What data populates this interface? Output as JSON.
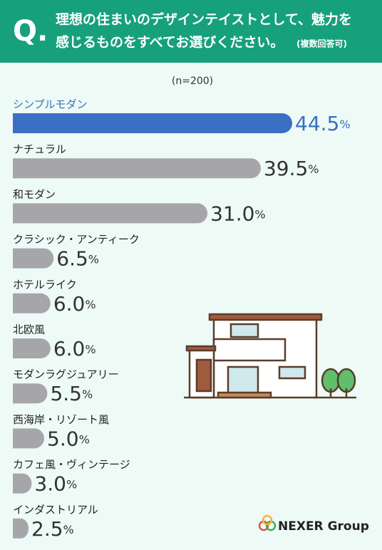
{
  "header": {
    "q": "Q.",
    "line1": "理想の住まいのデザインテイストとして、魅力を",
    "line2": "感じるものをすべてお選びください。",
    "note": "(複数回答可)"
  },
  "chart_data": {
    "type": "bar",
    "subtitle": "(n=200)",
    "categories": [
      "シンプルモダン",
      "ナチュラル",
      "和モダン",
      "クラシック・アンティーク",
      "ホテルライク",
      "北欧風",
      "モダンラグジュアリー",
      "西海岸・リゾート風",
      "カフェ風・ヴィンテージ",
      "インダストリアル"
    ],
    "values": [
      44.5,
      39.5,
      31.0,
      6.5,
      6.0,
      6.0,
      5.5,
      5.0,
      3.0,
      2.5
    ],
    "value_labels": [
      "44.5%",
      "39.5%",
      "31.0%",
      "6.5%",
      "6.0%",
      "6.0%",
      "5.5%",
      "5.0%",
      "3.0%",
      "2.5%"
    ],
    "color": "#a6a6aa",
    "highlight_color": "#3a6fc4"
  },
  "logo": "NEXER Group"
}
